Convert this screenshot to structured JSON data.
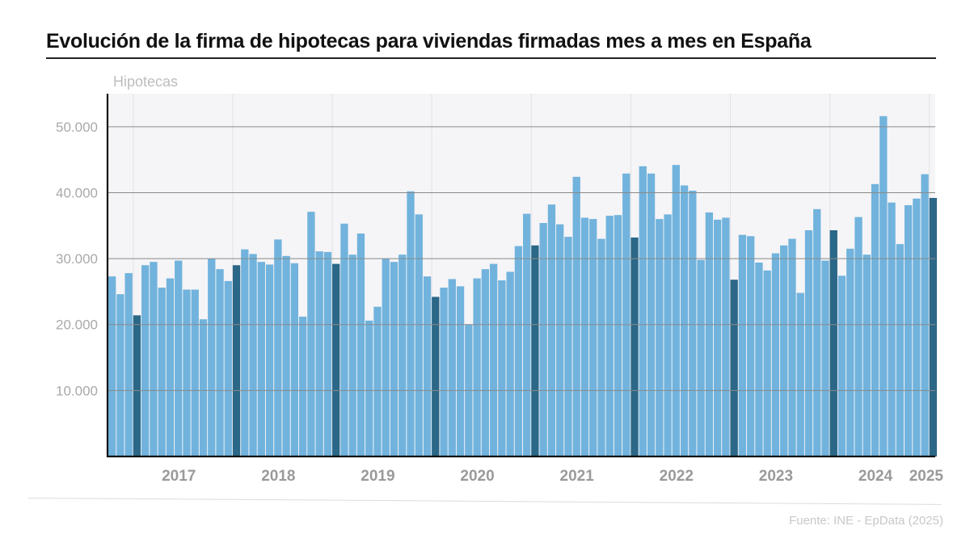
{
  "title": "Evolución de la firma de hipotecas para viviendas firmadas mes a mes en España",
  "source": "Fuente: INE - EpData (2025)",
  "colors": {
    "bar": "#71b3dd",
    "bar_highlight": "#2b6787",
    "plot_background": "#f5f4f6",
    "axis_text": "#a9a9a9",
    "gridline": "#8a8a8a"
  },
  "chart_data": {
    "type": "bar",
    "ylabel": "Hipotecas",
    "ylim": [
      0,
      55000
    ],
    "yticks": [
      10000,
      20000,
      30000,
      40000,
      50000
    ],
    "ytick_labels": [
      "10.000",
      "20.000",
      "30.000",
      "40.000",
      "50.000"
    ],
    "year_labels": [
      "2017",
      "2018",
      "2019",
      "2020",
      "2021",
      "2022",
      "2023",
      "2024",
      "2025"
    ],
    "grid": true,
    "highlight": "first month of each year (January) drawn in a darker blue",
    "series": [
      {
        "values": [
          27300,
          24600,
          27800,
          21400,
          29000,
          29500,
          25600,
          27000,
          29700,
          25300,
          25300,
          20800,
          30000,
          28400,
          26600,
          29000,
          31400,
          30700,
          29500,
          29100,
          32900,
          30400,
          29300,
          21200,
          37100,
          31100,
          31000,
          29200,
          35300,
          30600,
          33800,
          20600,
          22700,
          30000,
          29500,
          30600,
          40200,
          36700,
          27300,
          24200,
          25600,
          26900,
          25800,
          20000,
          27000,
          28400,
          29200,
          26700,
          28000,
          31900,
          36800,
          32000,
          35400,
          38200,
          35200,
          33300,
          42400,
          36200,
          36000,
          33000,
          36500,
          36600,
          42900,
          33200,
          44000,
          42900,
          36000,
          36700,
          44200,
          41100,
          40300,
          29800,
          37000,
          35900,
          36200,
          26800,
          33600,
          33400,
          29400,
          28200,
          30800,
          32000,
          33000,
          24800,
          34300,
          37500,
          29700,
          34300,
          27400,
          31500,
          36300,
          30600,
          41300,
          51600,
          38500,
          32200,
          38100,
          39100,
          42800,
          39200
        ]
      }
    ]
  }
}
